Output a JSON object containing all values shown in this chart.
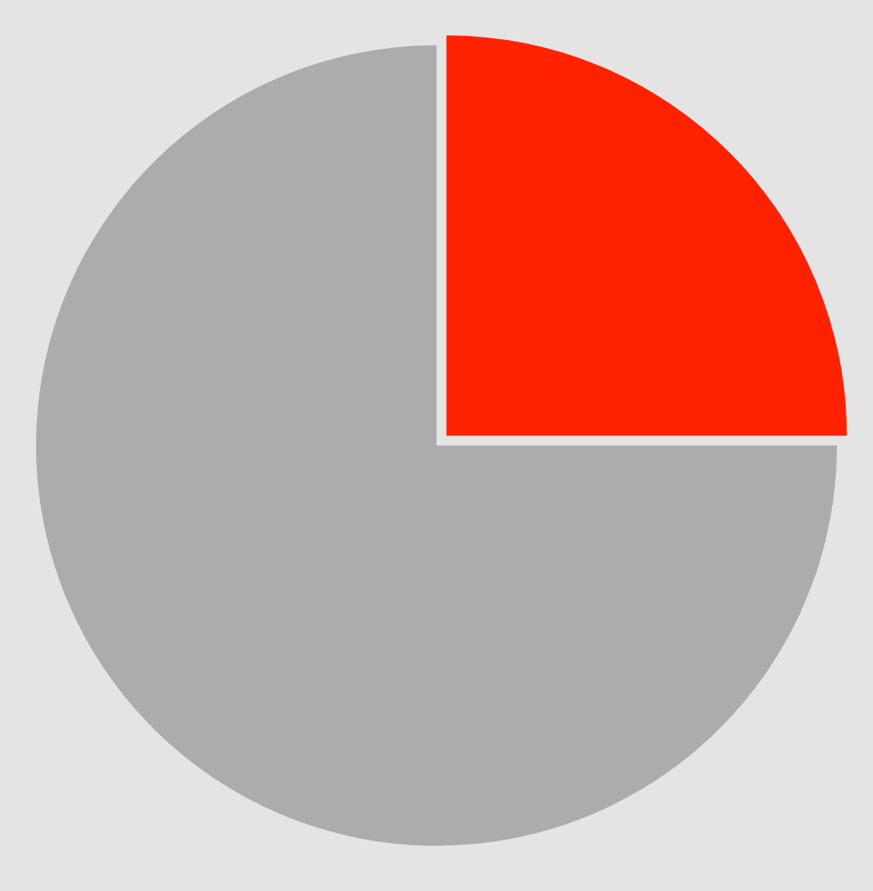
{
  "chart_data": {
    "type": "pie",
    "categories": [
      null,
      null
    ],
    "values": [
      25,
      75
    ],
    "colors": [
      "#ff2200",
      "#acacac"
    ],
    "legend": false
  }
}
